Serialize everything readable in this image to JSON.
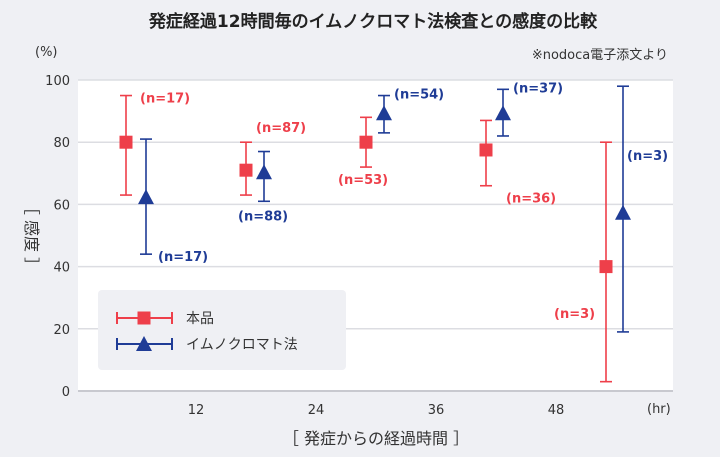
{
  "chart_data": {
    "type": "scatter",
    "title": "発症経過12時間毎のイムノクロマト法検査との感度の比較",
    "source_note": "※nodoca電子添文より",
    "ylabel": "［ 感度 ］",
    "y_unit": "(%)",
    "xlabel": "［ 発症からの経過時間 ］",
    "x_unit": "(hr)",
    "ylim": [
      0,
      100
    ],
    "xlim": [
      0,
      60
    ],
    "yticks": [
      "0",
      "20",
      "40",
      "60",
      "80",
      "100"
    ],
    "xticks": [
      "12",
      "24",
      "36",
      "48"
    ],
    "grid": "horizontal",
    "legend_position": "bottom-left",
    "series": [
      {
        "name": "本品",
        "color": "#ee3f4a",
        "marker": "square",
        "points": [
          {
            "x": 5,
            "y": 80,
            "low": 63,
            "high": 95,
            "label": "(n=17)"
          },
          {
            "x": 17,
            "y": 71,
            "low": 63,
            "high": 80,
            "label": "(n=87)"
          },
          {
            "x": 29,
            "y": 80,
            "low": 72,
            "high": 88,
            "label": "(n=53)"
          },
          {
            "x": 41,
            "y": 77.5,
            "low": 66,
            "high": 87,
            "label": "(n=36)"
          },
          {
            "x": 53,
            "y": 40,
            "low": 3,
            "high": 80,
            "label": "(n=3)"
          }
        ]
      },
      {
        "name": "イムノクロマト法",
        "color": "#1f3c96",
        "marker": "triangle",
        "points": [
          {
            "x": 7,
            "y": 62,
            "low": 44,
            "high": 81,
            "label": "(n=17)"
          },
          {
            "x": 18.8,
            "y": 70,
            "low": 61,
            "high": 77,
            "label": "(n=88)"
          },
          {
            "x": 30.8,
            "y": 89,
            "low": 83,
            "high": 95,
            "label": "(n=54)"
          },
          {
            "x": 42.7,
            "y": 89,
            "low": 82,
            "high": 97,
            "label": "(n=37)"
          },
          {
            "x": 54.7,
            "y": 57,
            "low": 19,
            "high": 98,
            "label": "(n=3)"
          }
        ]
      }
    ]
  }
}
